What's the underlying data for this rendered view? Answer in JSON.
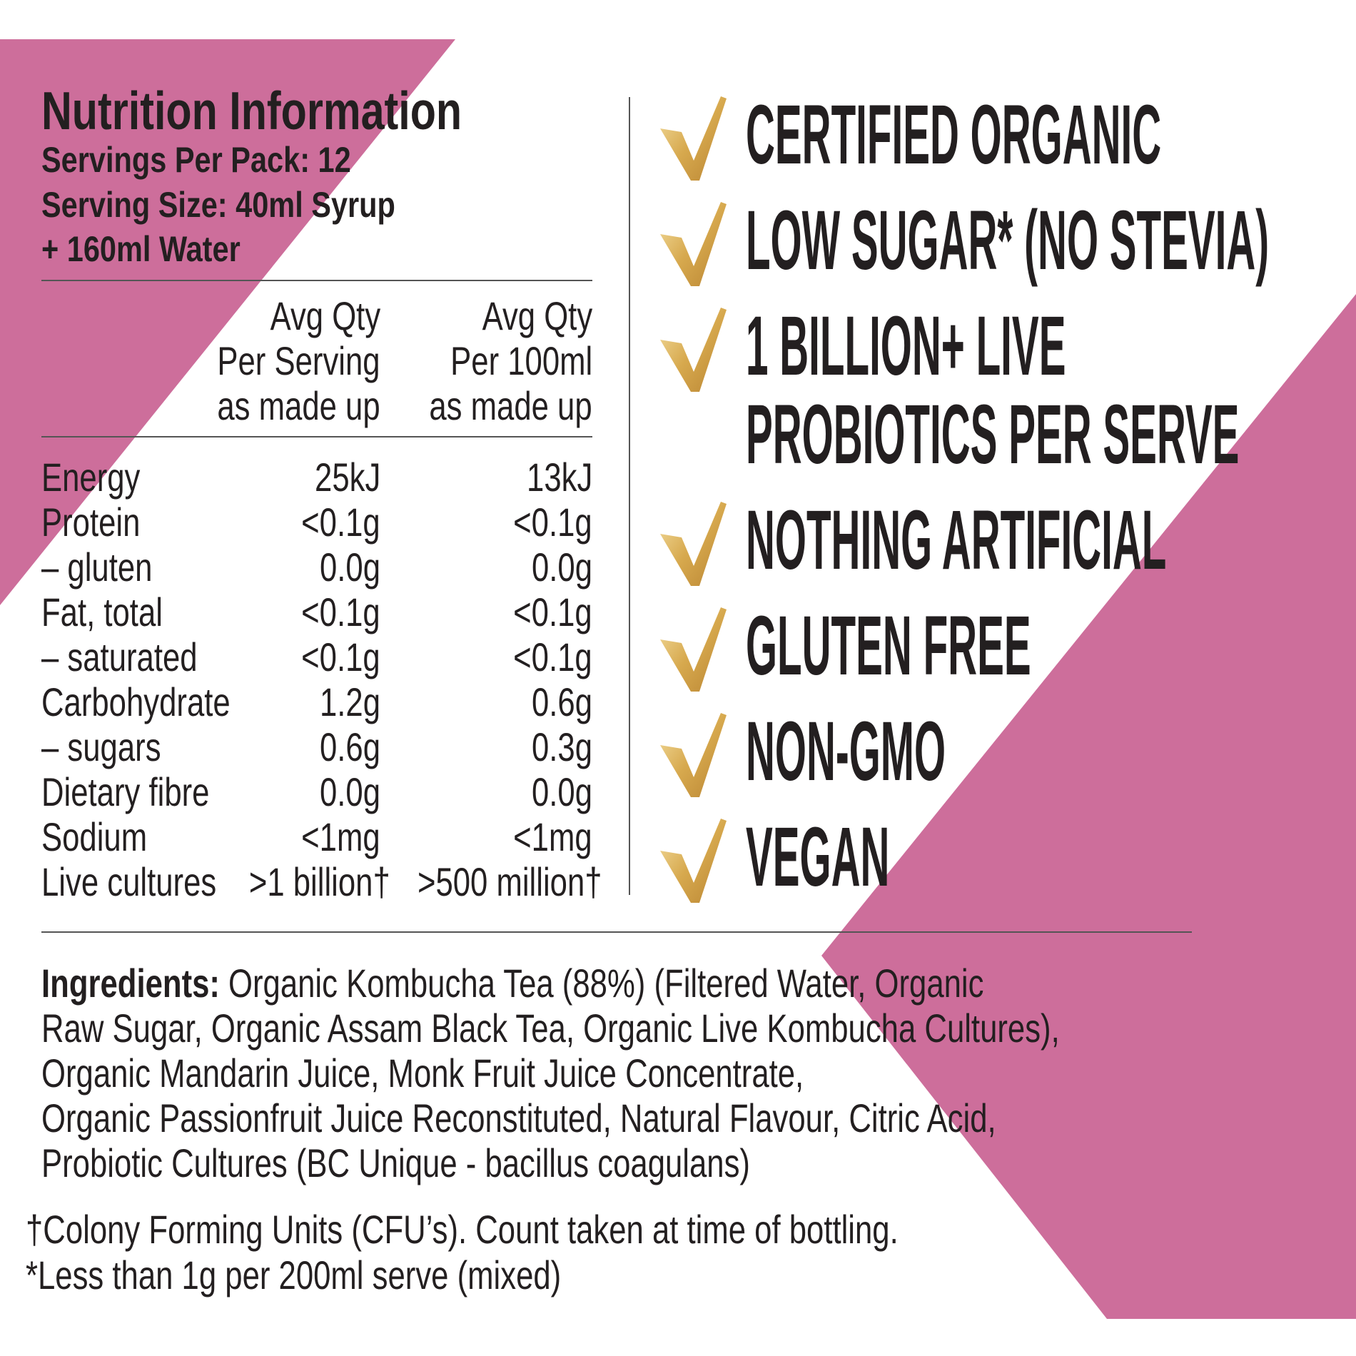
{
  "header": {
    "title": "Nutrition Information",
    "servings_per_pack": "Servings Per Pack: 12",
    "serving_size": [
      "Serving Size: 40ml Syrup",
      "+ 160ml Water"
    ]
  },
  "table": {
    "header": [
      [
        "Avg Qty",
        "Per Serving",
        "as made up"
      ],
      [
        "Avg Qty",
        "Per 100ml",
        "as made up"
      ]
    ],
    "rows": [
      [
        "Energy",
        "25kJ",
        "13kJ"
      ],
      [
        "Protein",
        "<0.1g",
        "<0.1g"
      ],
      [
        "– gluten",
        "0.0g",
        "0.0g"
      ],
      [
        "Fat, total",
        "<0.1g",
        "<0.1g"
      ],
      [
        "– saturated",
        "<0.1g",
        "<0.1g"
      ],
      [
        "Carbohydrate",
        "1.2g",
        "0.6g"
      ],
      [
        "– sugars",
        "0.6g",
        "0.3g"
      ],
      [
        "Dietary fibre",
        "0.0g",
        "0.0g"
      ],
      [
        "Sodium",
        "<1mg",
        "<1mg"
      ],
      [
        "Live cultures",
        ">1 billion†",
        ">500 million†"
      ]
    ]
  },
  "claims": [
    [
      "CERTIFIED ORGANIC"
    ],
    [
      "LOW SUGAR* (NO STEVIA)"
    ],
    [
      "1 BILLION+ LIVE",
      "PROBIOTICS PER SERVE"
    ],
    [
      "NOTHING ARTIFICIAL"
    ],
    [
      "GLUTEN FREE"
    ],
    [
      "NON-GMO"
    ],
    [
      "VEGAN"
    ]
  ],
  "ingredients": {
    "label": "Ingredients:",
    "lines": [
      "Organic Kombucha Tea (88%) (Filtered Water, Organic",
      "Raw Sugar, Organic Assam Black Tea, Organic Live Kombucha Cultures),",
      "Organic Mandarin Juice, Monk Fruit Juice Concentrate,",
      "Organic Passionfruit Juice Reconstituted, Natural Flavour, Citric Acid,",
      "Probiotic Cultures (BC Unique - bacillus coagulans)"
    ]
  },
  "footnotes": [
    "†Colony Forming Units (CFU’s). Count taken at time of bottling.",
    "*Less than 1g per 200ml serve (mixed)"
  ]
}
